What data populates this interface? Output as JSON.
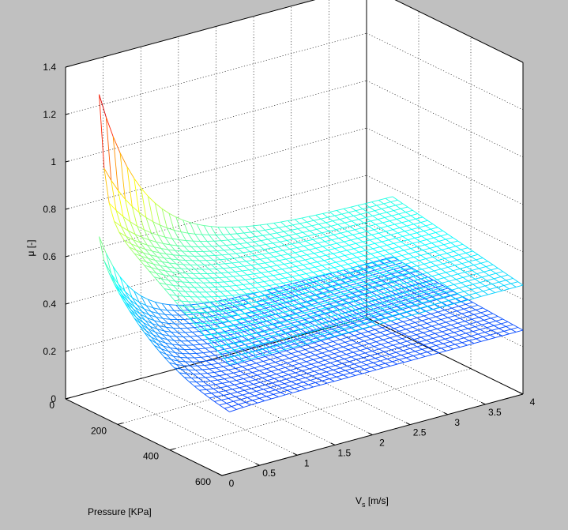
{
  "figure": {
    "background": "#c0c0c0",
    "axes_background": "#ffffff"
  },
  "chart_data": {
    "type": "surface3d",
    "title": "",
    "xlabel": "Pressure [KPa]",
    "ylabel_main": "V",
    "ylabel_sub": "s",
    "ylabel_unit": " [m/s]",
    "zlabel": "μ [-]",
    "x_ticks": [
      0,
      200,
      400,
      600
    ],
    "y_ticks": [
      0,
      0.5,
      1,
      1.5,
      2,
      2.5,
      3,
      3.5,
      4
    ],
    "z_ticks": [
      0,
      0.2,
      0.4,
      0.6,
      0.8,
      1,
      1.2,
      1.4
    ],
    "x_tick_labels": [
      "0",
      "200",
      "400",
      "600"
    ],
    "y_tick_labels": [
      "0",
      "0.5",
      "1",
      "1.5",
      "2",
      "2.5",
      "3",
      "3.5",
      "4"
    ],
    "z_tick_labels": [
      "0",
      "0.2",
      "0.4",
      "0.6",
      "0.8",
      "1",
      "1.2",
      "1.4"
    ],
    "xlim": [
      0,
      600
    ],
    "ylim": [
      0,
      4
    ],
    "zlim": [
      0,
      1.4
    ],
    "grid": true,
    "colormap": "jet",
    "surface_data_domain": {
      "pressure": [
        100,
        600
      ],
      "vs": [
        0.1,
        4
      ]
    },
    "surfaces": [
      {
        "name": "",
        "corners": {
          "p100_vs0.1": 1.33,
          "p100_vs4": 0.56,
          "p600_vs0.1": 0.83,
          "p600_vs4": 0.46
        },
        "approx_level_at_high_vs": 0.5
      },
      {
        "name": "",
        "corners": {
          "p100_vs0.1": 0.73,
          "p100_vs4": 0.31,
          "p600_vs0.1": 0.24,
          "p600_vs4": 0.27
        },
        "approx_level_at_high_vs": 0.25
      }
    ]
  }
}
